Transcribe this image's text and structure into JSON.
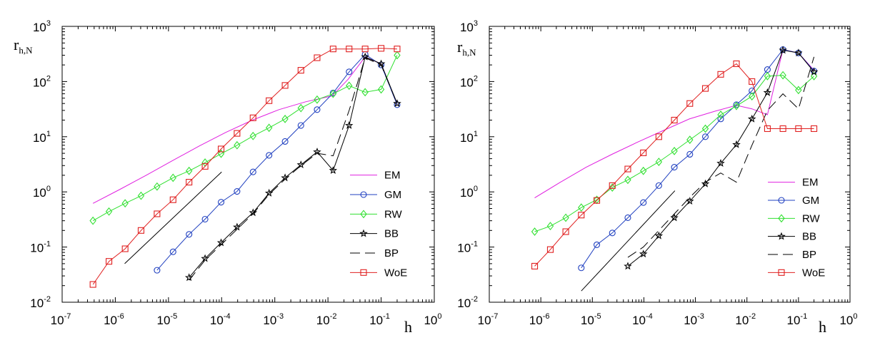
{
  "chart_data": [
    {
      "type": "line",
      "xscale": "log",
      "yscale": "log",
      "xlim": [
        1e-07,
        1
      ],
      "ylim": [
        0.01,
        1000
      ],
      "xlabel": "h",
      "ylabel": "r",
      "ylabel_sub": "h,N",
      "xticks": [
        {
          "base": "10",
          "exp": "-7",
          "value": 1e-07
        },
        {
          "base": "10",
          "exp": "-6",
          "value": 1e-06
        },
        {
          "base": "10",
          "exp": "-5",
          "value": 1e-05
        },
        {
          "base": "10",
          "exp": "-4",
          "value": 0.0001
        },
        {
          "base": "10",
          "exp": "-3",
          "value": 0.001
        },
        {
          "base": "10",
          "exp": "-2",
          "value": 0.01
        },
        {
          "base": "10",
          "exp": "-1",
          "value": 0.1
        },
        {
          "base": "10",
          "exp": "0",
          "value": 1
        }
      ],
      "yticks": [
        {
          "base": "10",
          "exp": "-2",
          "value": 0.01
        },
        {
          "base": "10",
          "exp": "-1",
          "value": 0.1
        },
        {
          "base": "10",
          "exp": "0",
          "value": 1
        },
        {
          "base": "10",
          "exp": "1",
          "value": 10
        },
        {
          "base": "10",
          "exp": "2",
          "value": 100
        },
        {
          "base": "10",
          "exp": "3",
          "value": 1000
        }
      ],
      "legend_position": "lower-right",
      "series": [
        {
          "name": "EM",
          "color": "#e020e0",
          "marker": "none",
          "dash": "solid",
          "x": [
            3.8e-07,
            1.2e-06,
            3.8e-06,
            1.2e-05,
            3.8e-05,
            0.00012,
            0.00038,
            0.0012,
            0.0038,
            0.012,
            0.024,
            0.05,
            0.1,
            0.2
          ],
          "y": [
            0.62,
            1.1,
            2.0,
            3.7,
            6.8,
            12,
            20,
            31,
            43,
            55,
            110,
            280,
            210,
            38
          ]
        },
        {
          "name": "GM",
          "color": "#2040c0",
          "marker": "circle",
          "dash": "solid",
          "x": [
            6.1e-06,
            1.22e-05,
            2.44e-05,
            4.88e-05,
            9.77e-05,
            0.000195,
            0.00039,
            0.00078,
            0.00156,
            0.0031,
            0.00625,
            0.0125,
            0.025,
            0.05,
            0.1,
            0.2
          ],
          "y": [
            0.038,
            0.082,
            0.17,
            0.32,
            0.65,
            1.02,
            2.3,
            4.6,
            8.2,
            16,
            31,
            62,
            150,
            310,
            200,
            38
          ]
        },
        {
          "name": "RW",
          "color": "#30e030",
          "marker": "diamond",
          "dash": "solid",
          "x": [
            3.8e-07,
            7.6e-07,
            1.53e-06,
            3.05e-06,
            6.1e-06,
            1.22e-05,
            2.44e-05,
            4.88e-05,
            9.77e-05,
            0.000195,
            0.00039,
            0.00078,
            0.00156,
            0.0031,
            0.00625,
            0.0125,
            0.025,
            0.05,
            0.1,
            0.2
          ],
          "y": [
            0.3,
            0.44,
            0.62,
            0.85,
            1.25,
            1.8,
            2.4,
            3.4,
            4.9,
            7,
            10.3,
            14.5,
            21,
            33,
            47,
            60,
            84,
            64,
            72,
            300
          ]
        },
        {
          "name": "BB",
          "color": "#000000",
          "marker": "star",
          "dash": "solid",
          "x": [
            2.44e-05,
            4.88e-05,
            9.77e-05,
            0.000195,
            0.00039,
            0.00078,
            0.00156,
            0.0031,
            0.00625,
            0.0125,
            0.025,
            0.05,
            0.1,
            0.2
          ],
          "y": [
            0.028,
            0.062,
            0.12,
            0.23,
            0.42,
            0.95,
            1.8,
            3.1,
            5.3,
            2.45,
            16,
            280,
            210,
            40
          ]
        },
        {
          "name": "BP",
          "color": "#000000",
          "marker": "none",
          "dash": "long",
          "x": [
            2.44e-05,
            4.88e-05,
            9.77e-05,
            0.000195,
            0.00039,
            0.00078,
            0.00156,
            0.0031,
            0.00625,
            0.0125,
            0.025,
            0.05,
            0.1,
            0.2
          ],
          "y": [
            0.025,
            0.058,
            0.11,
            0.21,
            0.4,
            0.9,
            1.7,
            3.0,
            5.0,
            4.5,
            30,
            270,
            200,
            40
          ]
        },
        {
          "name": "WoE",
          "color": "#e02020",
          "marker": "square",
          "dash": "solid",
          "x": [
            3.8e-07,
            7.6e-07,
            1.53e-06,
            3.05e-06,
            6.1e-06,
            1.22e-05,
            2.44e-05,
            4.88e-05,
            9.77e-05,
            0.000195,
            0.00039,
            0.00078,
            0.00156,
            0.0031,
            0.00625,
            0.0125,
            0.025,
            0.05,
            0.1,
            0.2
          ],
          "y": [
            0.021,
            0.055,
            0.093,
            0.2,
            0.4,
            0.72,
            1.5,
            2.9,
            6,
            11.5,
            22,
            45,
            85,
            160,
            270,
            390,
            390,
            390,
            400,
            390
          ]
        }
      ],
      "reference_line": {
        "x": [
          1.5e-06,
          0.0001
        ],
        "y": [
          0.05,
          2.3
        ],
        "color": "#000000"
      }
    },
    {
      "type": "line",
      "xscale": "log",
      "yscale": "log",
      "xlim": [
        1e-07,
        1
      ],
      "ylim": [
        0.01,
        1000
      ],
      "xlabel": "h",
      "ylabel": "r",
      "ylabel_sub": "h,N",
      "xticks": [
        {
          "base": "10",
          "exp": "-7",
          "value": 1e-07
        },
        {
          "base": "10",
          "exp": "-6",
          "value": 1e-06
        },
        {
          "base": "10",
          "exp": "-5",
          "value": 1e-05
        },
        {
          "base": "10",
          "exp": "-4",
          "value": 0.0001
        },
        {
          "base": "10",
          "exp": "-3",
          "value": 0.001
        },
        {
          "base": "10",
          "exp": "-2",
          "value": 0.01
        },
        {
          "base": "10",
          "exp": "-1",
          "value": 0.1
        },
        {
          "base": "10",
          "exp": "0",
          "value": 1
        }
      ],
      "yticks": [
        {
          "base": "10",
          "exp": "-2",
          "value": 0.01
        },
        {
          "base": "10",
          "exp": "-1",
          "value": 0.1
        },
        {
          "base": "10",
          "exp": "0",
          "value": 1
        },
        {
          "base": "10",
          "exp": "1",
          "value": 10
        },
        {
          "base": "10",
          "exp": "2",
          "value": 100
        },
        {
          "base": "10",
          "exp": "3",
          "value": 1000
        }
      ],
      "legend_position": "lower-right",
      "series": [
        {
          "name": "EM",
          "color": "#e020e0",
          "marker": "none",
          "dash": "solid",
          "x": [
            7.6e-07,
            2.4e-06,
            7.6e-06,
            2.4e-05,
            7.6e-05,
            0.00024,
            0.00076,
            0.0024,
            0.00625,
            0.0125,
            0.025,
            0.05,
            0.1,
            0.2
          ],
          "y": [
            0.78,
            1.5,
            2.8,
            4.8,
            8,
            13,
            21,
            29,
            37,
            32,
            25,
            380,
            330,
            160
          ]
        },
        {
          "name": "GM",
          "color": "#2040c0",
          "marker": "circle",
          "dash": "solid",
          "x": [
            6.1e-06,
            1.22e-05,
            2.44e-05,
            4.88e-05,
            9.77e-05,
            0.000195,
            0.00039,
            0.00078,
            0.00156,
            0.0031,
            0.00625,
            0.0125,
            0.025,
            0.05,
            0.1,
            0.2
          ],
          "y": [
            0.042,
            0.11,
            0.18,
            0.34,
            0.64,
            1.3,
            2.8,
            4.8,
            10,
            21,
            38,
            68,
            165,
            380,
            330,
            155
          ]
        },
        {
          "name": "RW",
          "color": "#30e030",
          "marker": "diamond",
          "dash": "solid",
          "x": [
            7.6e-07,
            1.53e-06,
            3.05e-06,
            6.1e-06,
            1.22e-05,
            2.44e-05,
            4.88e-05,
            9.77e-05,
            0.000195,
            0.00039,
            0.00078,
            0.00156,
            0.0031,
            0.00625,
            0.0125,
            0.025,
            0.05,
            0.1,
            0.2
          ],
          "y": [
            0.19,
            0.24,
            0.34,
            0.52,
            0.72,
            1.2,
            1.65,
            2.4,
            3.5,
            5.5,
            8.8,
            14,
            25,
            36,
            54,
            125,
            130,
            70,
            125
          ]
        },
        {
          "name": "BB",
          "color": "#000000",
          "marker": "star",
          "dash": "solid",
          "x": [
            4.88e-05,
            9.77e-05,
            0.000195,
            0.00039,
            0.00078,
            0.00156,
            0.0031,
            0.00625,
            0.0125,
            0.025,
            0.05,
            0.1,
            0.2
          ],
          "y": [
            0.045,
            0.075,
            0.16,
            0.34,
            0.68,
            1.4,
            3.3,
            7.2,
            21,
            63,
            370,
            330,
            150
          ]
        },
        {
          "name": "BP",
          "color": "#000000",
          "marker": "none",
          "dash": "long",
          "x": [
            4.88e-05,
            9.77e-05,
            0.000195,
            0.00039,
            0.00078,
            0.00156,
            0.0031,
            0.00625,
            0.0125,
            0.025,
            0.05,
            0.1,
            0.2
          ],
          "y": [
            0.065,
            0.1,
            0.2,
            0.4,
            0.8,
            1.5,
            2.2,
            1.5,
            7,
            30,
            60,
            32,
            280
          ]
        },
        {
          "name": "WoE",
          "color": "#e02020",
          "marker": "square",
          "dash": "solid",
          "x": [
            7.6e-07,
            1.53e-06,
            3.05e-06,
            6.1e-06,
            1.22e-05,
            2.44e-05,
            4.88e-05,
            9.77e-05,
            0.000195,
            0.00039,
            0.00078,
            0.00156,
            0.0031,
            0.00625,
            0.0125,
            0.025,
            0.05,
            0.1,
            0.2
          ],
          "y": [
            0.045,
            0.09,
            0.19,
            0.38,
            0.7,
            1.3,
            2.6,
            5.1,
            10,
            20,
            40,
            75,
            135,
            210,
            100,
            14,
            14,
            14,
            14
          ]
        }
      ],
      "reference_line": {
        "x": [
          6.1e-06,
          0.0004
        ],
        "y": [
          0.016,
          1.05
        ],
        "color": "#000000"
      }
    }
  ]
}
